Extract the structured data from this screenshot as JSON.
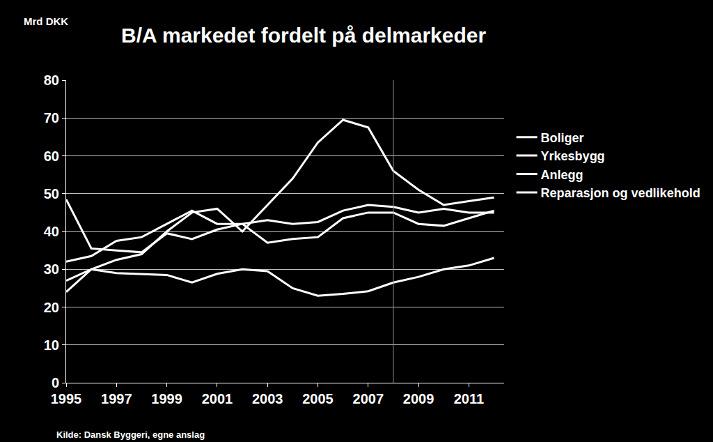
{
  "chart_data": {
    "type": "line",
    "title": "B/A markedet fordelt på delmarkeder",
    "y_label": "Mrd DKK",
    "source": "Kilde: Dansk Byggeri, egne anslag",
    "x": [
      1995,
      1996,
      1997,
      1998,
      1999,
      2000,
      2001,
      2002,
      2003,
      2004,
      2005,
      2006,
      2007,
      2008,
      2009,
      2010,
      2011,
      2012
    ],
    "series": [
      {
        "name": "Boliger",
        "color": "#ffffff",
        "values": [
          24,
          30,
          32.5,
          34,
          40,
          45,
          46,
          40,
          47,
          54,
          63.5,
          69.5,
          67.5,
          56,
          51,
          47,
          48,
          49
        ]
      },
      {
        "name": "Yrkesbygg",
        "color": "#ffffff",
        "values": [
          48.5,
          35.5,
          35,
          34.5,
          39.5,
          38,
          40.5,
          42,
          43,
          42,
          42.5,
          45.5,
          47,
          46.5,
          45,
          46,
          45,
          45
        ]
      },
      {
        "name": "Anlegg",
        "color": "#ffffff",
        "values": [
          32,
          33.5,
          37.5,
          38.5,
          42,
          45.5,
          42,
          42,
          37,
          38,
          38.5,
          43.5,
          45,
          45,
          42,
          41.5,
          43.5,
          45.5
        ]
      },
      {
        "name": "Reparasjon og vedlikehold",
        "color": "#ffffff",
        "values": [
          27,
          30,
          29,
          28.8,
          28.5,
          26.5,
          28.8,
          30,
          29.5,
          25,
          23,
          23.5,
          24.2,
          26.5,
          28,
          30,
          31,
          33
        ]
      }
    ],
    "vline_x": 2008,
    "xlim": [
      1995,
      2012.4
    ],
    "xticks": [
      1995,
      1997,
      1999,
      2001,
      2003,
      2005,
      2007,
      2009,
      2011
    ],
    "ylim": [
      0,
      80
    ],
    "yticks": [
      0,
      10,
      20,
      30,
      40,
      50,
      60,
      70,
      80
    ],
    "grid": true,
    "legend": "right"
  }
}
